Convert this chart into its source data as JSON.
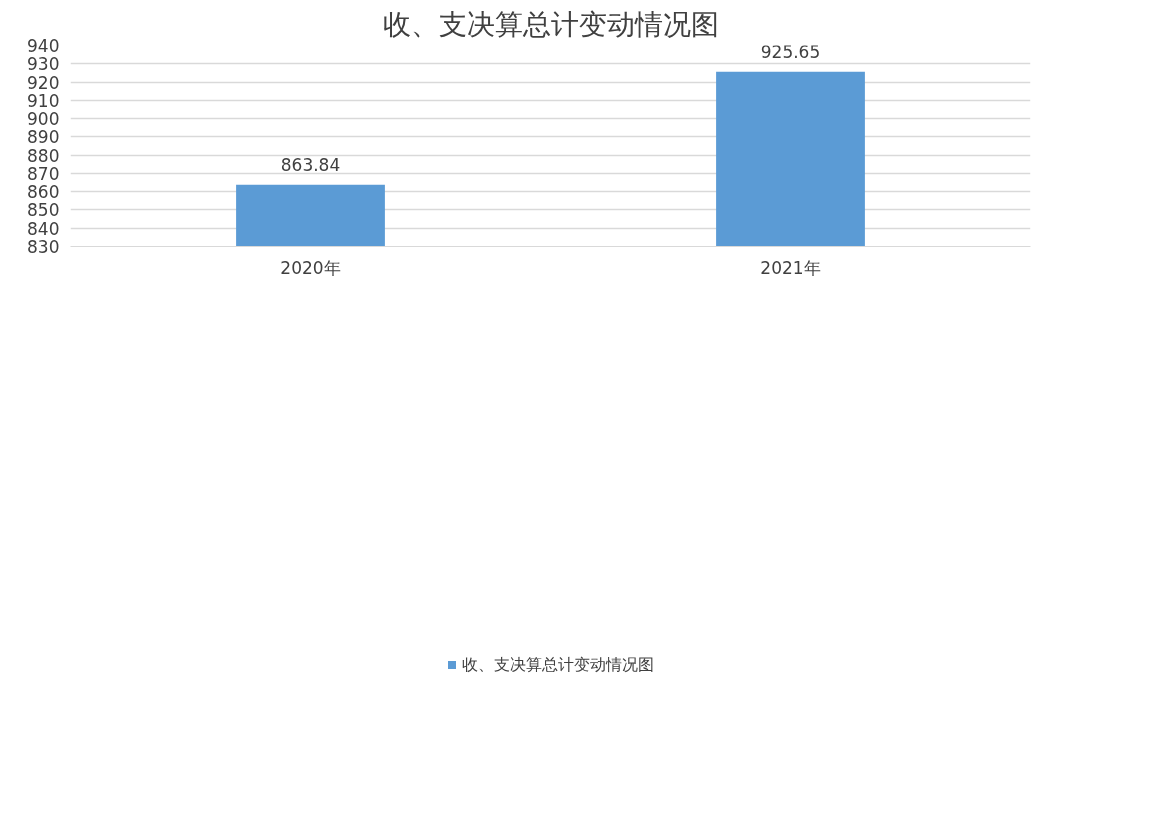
{
  "chart_data": {
    "type": "bar",
    "title": "收、支决算总计变动情况图",
    "categories": [
      "2020年",
      "2021年"
    ],
    "series": [
      {
        "name": "收、支决算总计变动情况图",
        "color": "#5b9bd5",
        "values": [
          863.84,
          925.65
        ]
      }
    ],
    "ylim": [
      830,
      940
    ],
    "yticks": [
      830,
      840,
      850,
      860,
      870,
      880,
      890,
      900,
      910,
      920,
      930,
      940
    ],
    "grid": "y",
    "legend": "bottom",
    "data_labels": true
  }
}
